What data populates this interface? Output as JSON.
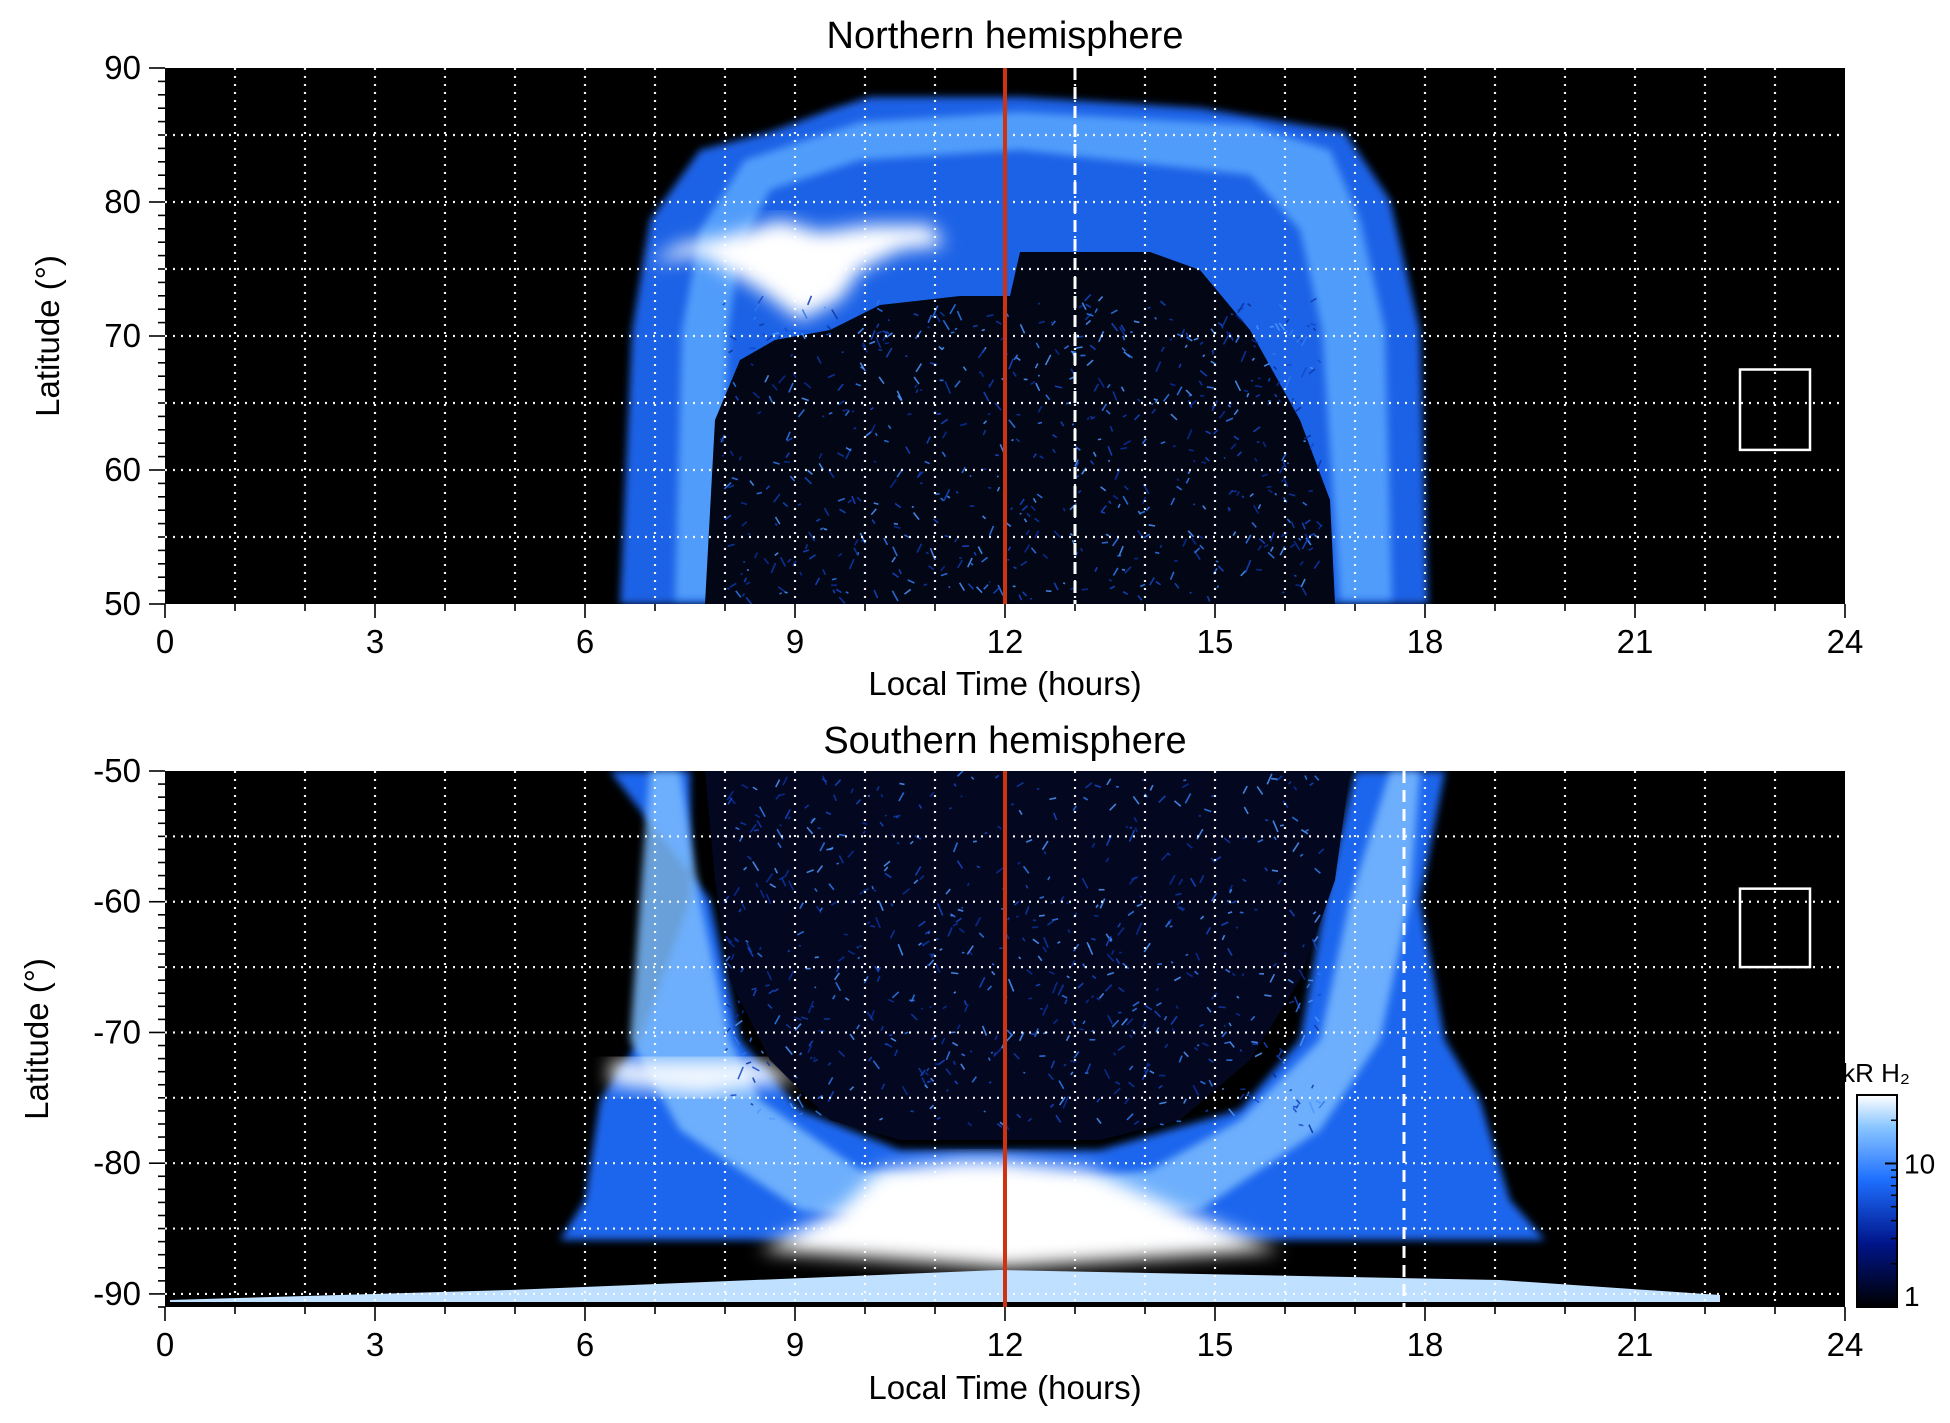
{
  "chart_data": [
    {
      "type": "heatmap",
      "title": "Northern hemisphere",
      "xlabel": "Local Time (hours)",
      "ylabel": "Latitude (°)",
      "xlim": [
        0,
        24
      ],
      "ylim": [
        50,
        90
      ],
      "x_ticks": [
        "0",
        "3",
        "6",
        "9",
        "12",
        "15",
        "18",
        "21",
        "24"
      ],
      "y_ticks": [
        "50",
        "60",
        "70",
        "80",
        "90"
      ],
      "grid": true,
      "red_line_x": 12,
      "dashed_line_x": 13,
      "box": {
        "x0": 22.5,
        "x1": 23.5,
        "y0": 61.5,
        "y1": 67.5
      },
      "coverage_lt": [
        6.5,
        18
      ],
      "coverage_lat_max": 88,
      "oval_center_lt": 12,
      "oval_edge_lat_noon": 76,
      "bright_arc": {
        "lt": [
          7.5,
          11
        ],
        "lat": [
          71,
          77
        ]
      }
    },
    {
      "type": "heatmap",
      "title": "Southern hemisphere",
      "xlabel": "Local Time (hours)",
      "ylabel": "Latitude (°)",
      "xlim": [
        0,
        24
      ],
      "ylim": [
        -91,
        -50
      ],
      "x_ticks": [
        "0",
        "3",
        "6",
        "9",
        "12",
        "15",
        "18",
        "21",
        "24"
      ],
      "y_ticks": [
        "-50",
        "-60",
        "-70",
        "-80",
        "-90"
      ],
      "grid": true,
      "red_line_x": 12,
      "dashed_line_x": 17.7,
      "box": {
        "x0": 22.5,
        "x1": 23.5,
        "y0": -65,
        "y1": -59
      },
      "coverage_lt": [
        6.2,
        18.5
      ],
      "oval_center_lt": 12,
      "oval_edge_lat_noon": -78,
      "colorbar": {
        "label": "kR H₂",
        "ticks": [
          "1",
          "10"
        ],
        "range": [
          1,
          30
        ],
        "scale": "log"
      }
    }
  ]
}
